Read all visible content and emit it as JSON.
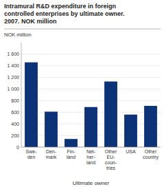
{
  "chart_data": {
    "type": "bar",
    "title": "Intramural R&D expenditure in foreign\ncontrolled enterprises by ultimate owner.\n2007. NOK million",
    "y_label": "NOK million",
    "x_label": "Ultimate owner",
    "categories": [
      "Swe-\nden",
      "Den-\nmark",
      "Fin-\nland",
      "Net-\nher-\nland",
      "Other\nEU-\ncoun-\ntries",
      "USA",
      "Other\ncountry"
    ],
    "values": [
      1460,
      610,
      140,
      690,
      1130,
      560,
      710
    ],
    "color": "#0c3278",
    "ylim": [
      0,
      1800
    ],
    "yticks": [
      0,
      200,
      400,
      600,
      800,
      {
        "value": 1000,
        "label": "1 000"
      },
      {
        "value": 1200,
        "label": "1 200"
      },
      {
        "value": 1400,
        "label": "1 400"
      },
      {
        "value": 1600,
        "label": "1 600"
      }
    ],
    "grid": true
  }
}
